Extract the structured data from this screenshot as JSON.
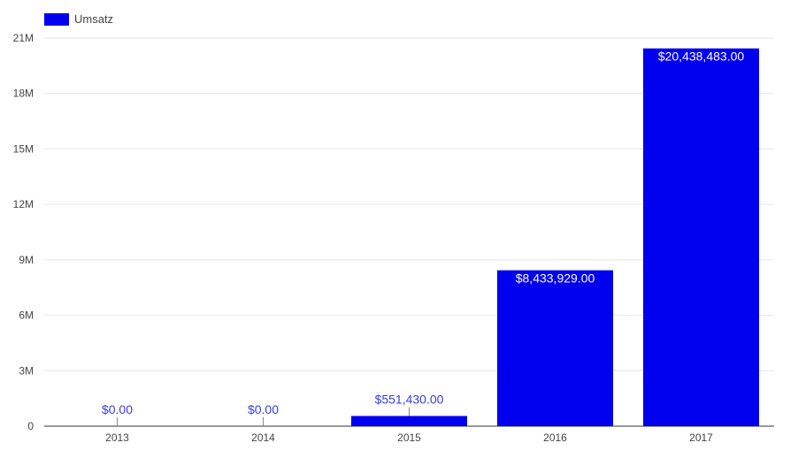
{
  "chart_data": {
    "type": "bar",
    "categories": [
      "2013",
      "2014",
      "2015",
      "2016",
      "2017"
    ],
    "series": [
      {
        "name": "Umsatz",
        "values": [
          0,
          0,
          551430,
          8433929,
          20438483
        ],
        "labels": [
          "$0.00",
          "$0.00",
          "$551,430.00",
          "$8,433,929.00",
          "$20,438,483.00"
        ]
      }
    ],
    "ylim": [
      0,
      21000000
    ],
    "yticks": [
      0,
      3000000,
      6000000,
      9000000,
      12000000,
      15000000,
      18000000,
      21000000
    ],
    "ytick_labels": [
      "0",
      "3M",
      "6M",
      "9M",
      "12M",
      "15M",
      "18M",
      "21M"
    ],
    "grid": true,
    "legend": "top-left",
    "colors": {
      "bar": "#0000ee",
      "outside_label": "#3b3be0"
    }
  }
}
